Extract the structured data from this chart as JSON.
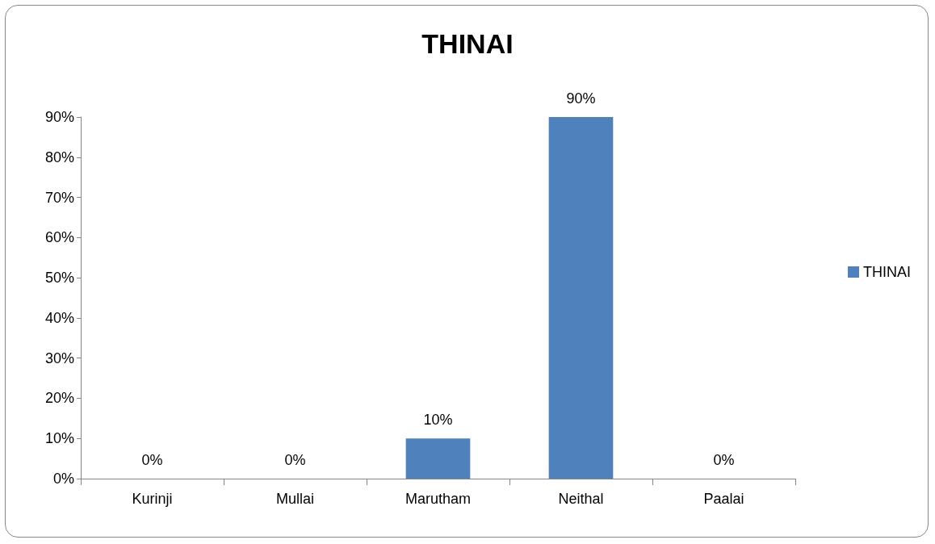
{
  "chart_data": {
    "type": "bar",
    "title": "THINAI",
    "categories": [
      "Kurinji",
      "Mullai",
      "Marutham",
      "Neithal",
      "Paalai"
    ],
    "series": [
      {
        "name": "THINAI",
        "color": "#4f81bd",
        "values": [
          0,
          0,
          10,
          90,
          0
        ],
        "value_labels": [
          "0%",
          "0%",
          "10%",
          "90%",
          "0%"
        ]
      }
    ],
    "ylim": [
      0,
      90
    ],
    "yticks": [
      {
        "value": 0,
        "label": "0%"
      },
      {
        "value": 10,
        "label": "10%"
      },
      {
        "value": 20,
        "label": "20%"
      },
      {
        "value": 30,
        "label": "30%"
      },
      {
        "value": 40,
        "label": "40%"
      },
      {
        "value": 50,
        "label": "50%"
      },
      {
        "value": 60,
        "label": "60%"
      },
      {
        "value": 70,
        "label": "70%"
      },
      {
        "value": 80,
        "label": "80%"
      },
      {
        "value": 90,
        "label": "90%"
      }
    ],
    "grid": false,
    "legend": "right"
  }
}
